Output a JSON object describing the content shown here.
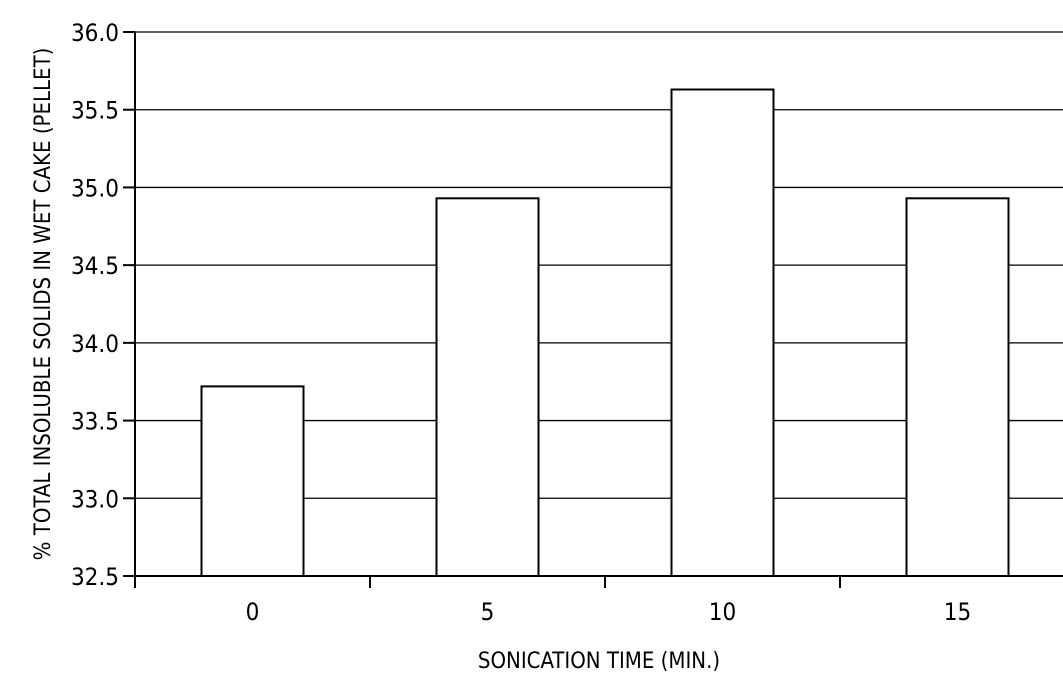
{
  "chart_data": {
    "type": "bar",
    "categories": [
      "0",
      "5",
      "10",
      "15"
    ],
    "values": [
      33.72,
      34.93,
      35.63,
      34.93
    ],
    "title": "",
    "xlabel": "SONICATION TIME (MIN.)",
    "ylabel": "% TOTAL INSOLUBLE SOLIDS IN WET CAKE (PELLET)",
    "ylim": [
      32.5,
      36.0
    ],
    "yticks": [
      "32.5",
      "33.0",
      "33.5",
      "34.0",
      "34.5",
      "35.0",
      "35.5",
      "36.0"
    ],
    "grid": true,
    "legend": "none",
    "colors": {
      "bar_fill": "#ffffff",
      "stroke": "#000000",
      "background": "#ffffff"
    }
  }
}
